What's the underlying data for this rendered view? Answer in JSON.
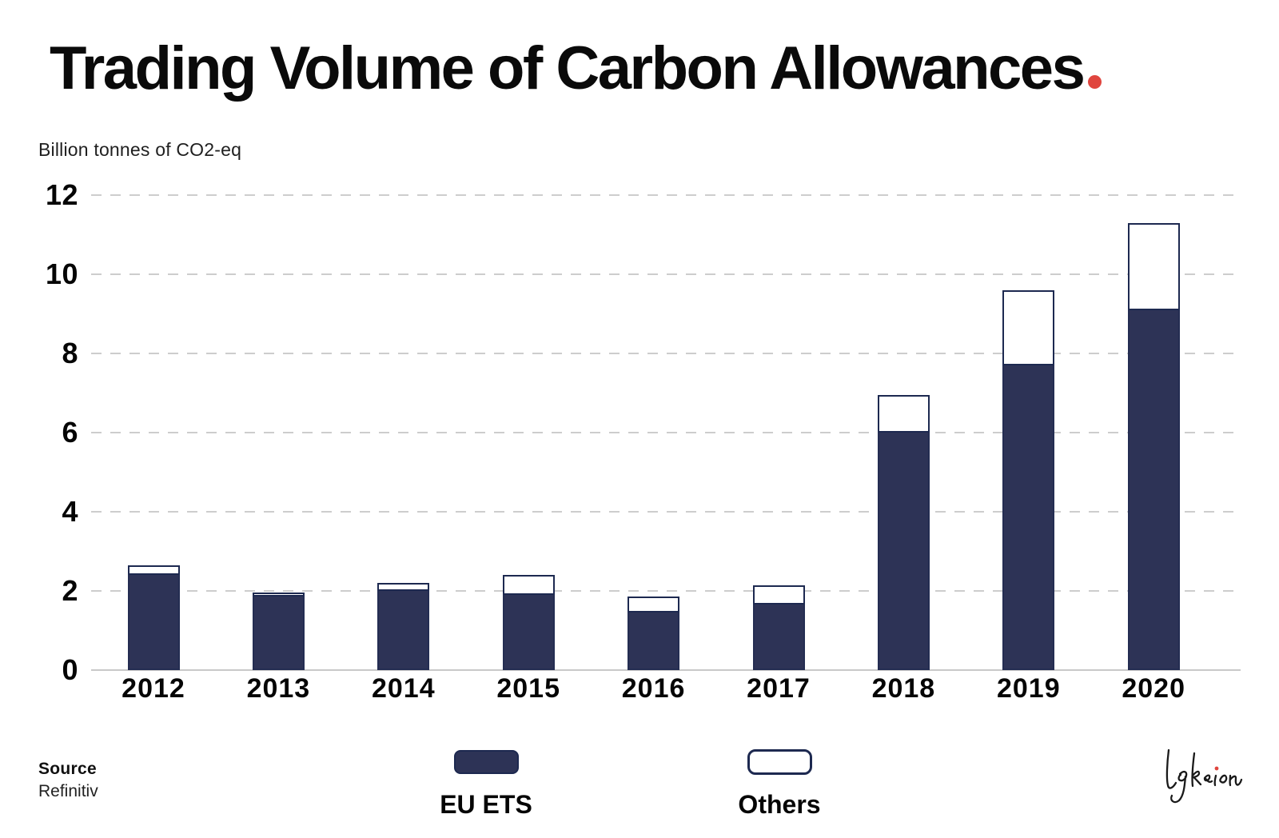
{
  "title": {
    "text": "Trading Volume of Carbon Allowances",
    "accent_dot": ".",
    "accent_color": "#E0453E"
  },
  "unit_label": "Billion tonnes of CO2-eq",
  "source": {
    "label": "Source",
    "value": "Refinitiv"
  },
  "legend": {
    "items": [
      {
        "label": "EU ETS",
        "swatch": "filled-navy"
      },
      {
        "label": "Others",
        "swatch": "outlined-white"
      }
    ]
  },
  "signature": {
    "text": "Lykeion",
    "style": "handwritten",
    "accent_dot_color": "#E0453E"
  },
  "colors": {
    "navy": "#2D3356",
    "navy_outline": "#1D2950",
    "accent_red": "#E0453E",
    "gridline": "#CDCDCD",
    "axis_line": "#C9C9C9",
    "text": "#0B0B0B"
  },
  "chart_data": {
    "type": "bar",
    "stacked": true,
    "categories": [
      "2012",
      "2013",
      "2014",
      "2015",
      "2016",
      "2017",
      "2018",
      "2019",
      "2020"
    ],
    "series": [
      {
        "name": "EU ETS",
        "values": [
          2.4,
          1.85,
          2.0,
          1.9,
          1.45,
          1.65,
          6.0,
          7.7,
          9.1
        ]
      },
      {
        "name": "Others",
        "values": [
          0.25,
          0.1,
          0.2,
          0.5,
          0.4,
          0.5,
          0.95,
          1.9,
          2.2
        ]
      }
    ],
    "title": "Trading Volume of Carbon Allowances",
    "xlabel": "",
    "ylabel": "Billion tonnes of CO2-eq",
    "ylim": [
      0,
      12
    ],
    "yticks": [
      0,
      2,
      4,
      6,
      8,
      10,
      12
    ],
    "grid": "horizontal-dashed",
    "legend_position": "bottom"
  }
}
